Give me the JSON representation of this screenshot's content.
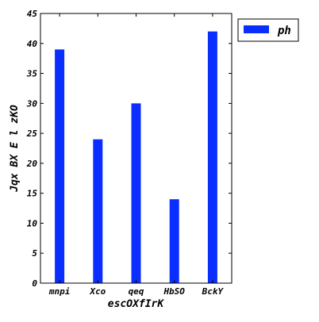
{
  "chart_data": {
    "type": "bar",
    "categories": [
      "mnpi",
      "Xco",
      "qeq",
      "HbSO",
      "BckY"
    ],
    "series": [
      {
        "name": "ph",
        "values": [
          39,
          24,
          30,
          14,
          42
        ],
        "color": "#0a2eff"
      }
    ],
    "title": "",
    "xlabel": "escOXfIrK",
    "ylabel": "Jqx BX E l zKO",
    "ylim": [
      0,
      45
    ],
    "yticks": [
      0,
      5,
      10,
      15,
      20,
      25,
      30,
      35,
      40,
      45
    ],
    "grid": false,
    "legend_position": "outside-top-right"
  }
}
